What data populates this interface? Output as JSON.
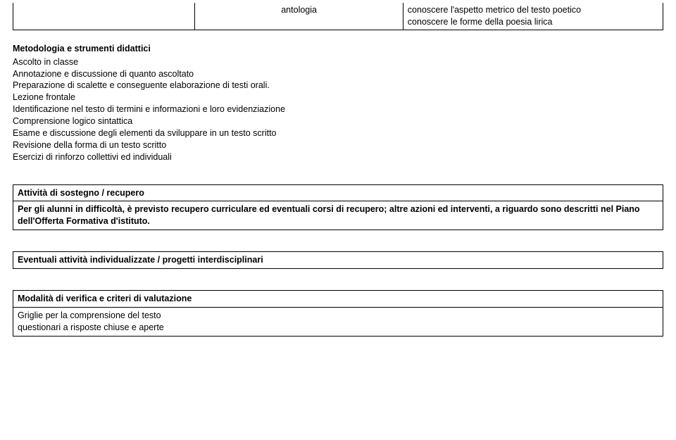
{
  "topTable": {
    "col2": "antologia",
    "col3_line1": "conoscere l'aspetto metrico del testo poetico",
    "col3_line2": "conoscere le forme della poesia lirica"
  },
  "metodologia": {
    "heading": "Metodologia e strumenti didattici",
    "lines": [
      "Ascolto in classe",
      "Annotazione e discussione di quanto ascoltato",
      "Preparazione di scalette e conseguente elaborazione di testi orali.",
      "Lezione frontale",
      "Identificazione nel testo di termini e informazioni e loro evidenziazione",
      "Comprensione logico sintattica",
      "Esame e discussione degli elementi da sviluppare in un testo scritto",
      "Revisione della forma di un testo scritto",
      "Esercizi di rinforzo collettivi ed individuali"
    ]
  },
  "sostegno": {
    "heading": "Attività di sostegno / recupero",
    "body": "Per gli alunni in difficoltà, è previsto recupero curriculare ed eventuali corsi di recupero; altre azioni ed interventi, a riguardo sono descritti nel Piano dell'Offerta Formativa d'istituto."
  },
  "attivitaInd": {
    "heading": "Eventuali attività individualizzate / progetti interdisciplinari"
  },
  "verifica": {
    "heading": "Modalità di verifica e criteri di valutazione",
    "line1": "Griglie per la comprensione del testo",
    "line2": "questionari a risposte chiuse e aperte"
  }
}
